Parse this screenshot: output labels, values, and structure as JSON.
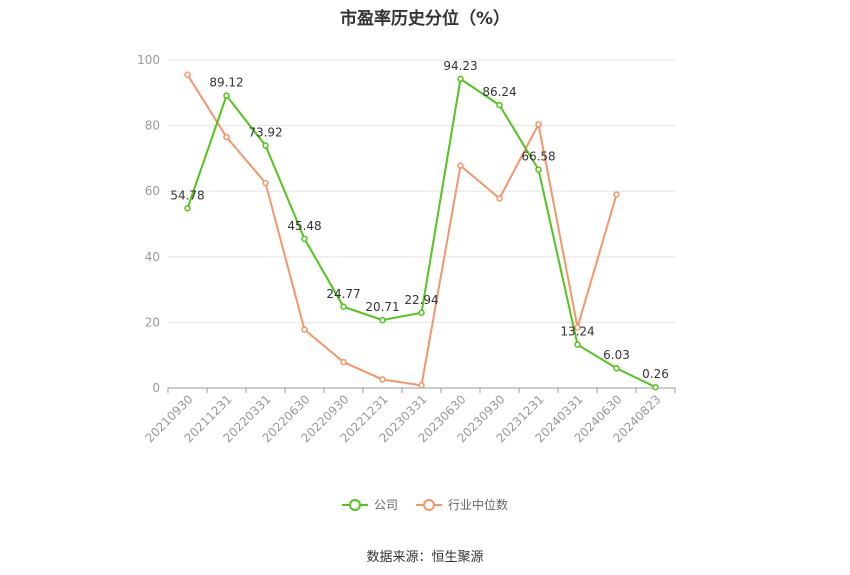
{
  "chart_data": {
    "type": "line",
    "title": "市盈率历史分位（%）",
    "categories": [
      "20210930",
      "20211231",
      "20220331",
      "20220630",
      "20220930",
      "20221231",
      "20230331",
      "20230630",
      "20230930",
      "20231231",
      "20240331",
      "20240630",
      "20240823"
    ],
    "series": [
      {
        "name": "公司",
        "color": "#52c41a",
        "values": [
          54.78,
          89.12,
          73.92,
          45.48,
          24.77,
          20.71,
          22.94,
          94.23,
          86.24,
          66.58,
          13.24,
          6.03,
          0.26
        ],
        "labels": [
          "54.78",
          "89.12",
          "73.92",
          "45.48",
          "24.77",
          "20.71",
          "22.94",
          "94.23",
          "86.24",
          "66.58",
          "13.24",
          "6.03",
          "0.26"
        ]
      },
      {
        "name": "行业中位数",
        "color": "#f4956a",
        "values": [
          95.5,
          76.5,
          62.5,
          17.8,
          7.9,
          2.6,
          0.8,
          67.8,
          57.8,
          80.4,
          18.5,
          59.0,
          null
        ]
      }
    ],
    "ylim": [
      0,
      100
    ],
    "yticks": [
      0,
      20,
      40,
      60,
      80,
      100
    ],
    "grid": true,
    "legend": "bottom"
  },
  "source_text": "数据来源：恒生聚源"
}
